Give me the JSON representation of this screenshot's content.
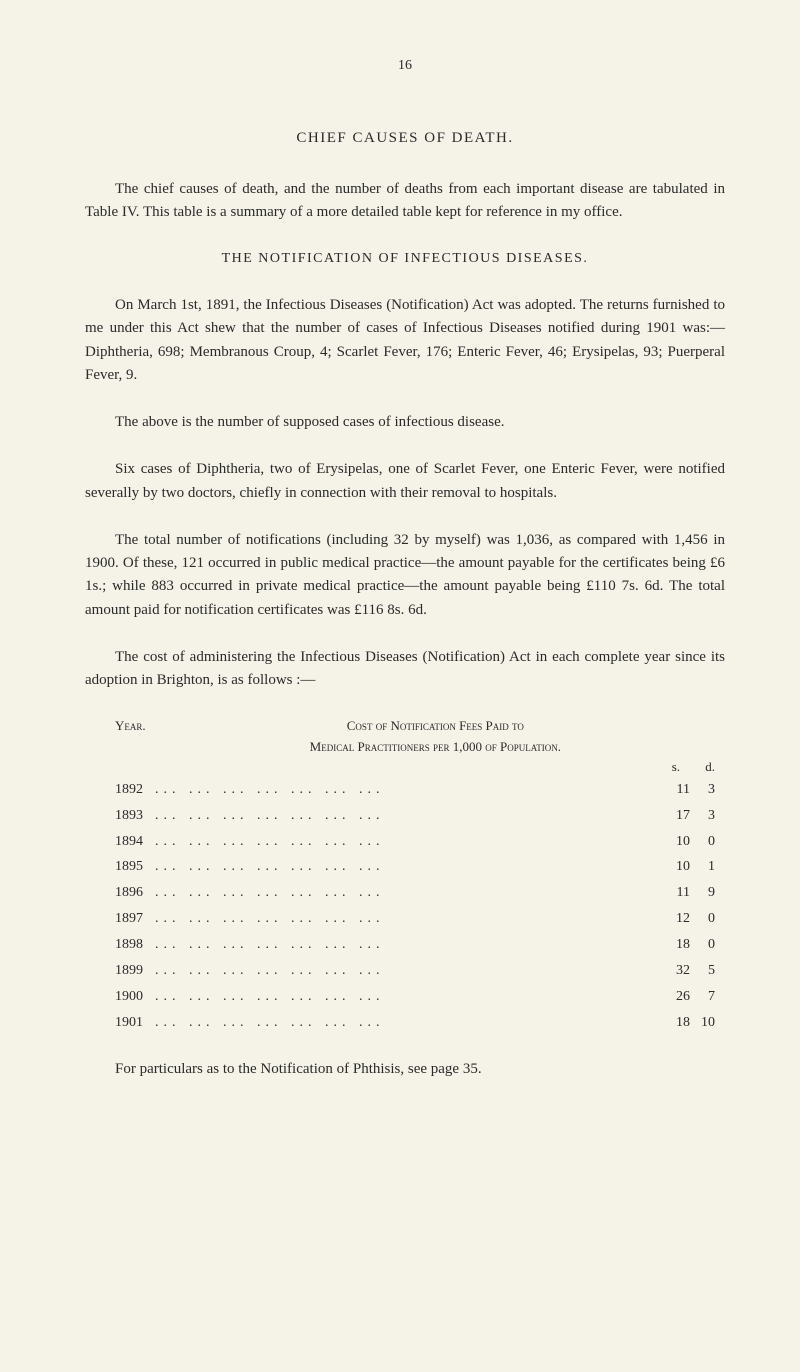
{
  "page_number": "16",
  "section1": {
    "heading": "CHIEF CAUSES OF DEATH.",
    "para1": "The chief causes of death, and the number of deaths from each important disease are tabulated in Table IV. This table is a summary of a more detailed table kept for reference in my office."
  },
  "section2": {
    "heading": "THE NOTIFICATION OF INFECTIOUS DISEASES.",
    "para1": "On March 1st, 1891, the Infectious Diseases (Notification) Act was adopted. The returns furnished to me under this Act shew that the number of cases of Infectious Diseases notified during 1901 was:—Diphtheria, 698; Membranous Croup, 4; Scarlet Fever, 176; Enteric Fever, 46; Erysipelas, 93; Puerperal Fever, 9.",
    "para2": "The above is the number of supposed cases of infectious disease.",
    "para3": "Six cases of Diphtheria, two of Erysipelas, one of Scarlet Fever, one Enteric Fever, were notified severally by two doctors, chiefly in connection with their removal to hospitals.",
    "para4": "The total number of notifications (including 32 by myself) was 1,036, as compared with 1,456 in 1900. Of these, 121 occurred in public medical practice—the amount payable for the certificates being £6 1s.; while 883 occurred in private medical practice—the amount payable being £110 7s. 6d. The total amount paid for notification certificates was £116 8s. 6d.",
    "para5": "The cost of administering the Infectious Diseases (Notification) Act in each complete year since its adoption in Brighton, is as follows :—"
  },
  "table": {
    "year_label": "Year.",
    "header_line1": "Cost of Notification Fees Paid to",
    "header_line2": "Medical Practitioners per 1,000 of Population.",
    "col_s": "s.",
    "col_d": "d.",
    "rows": [
      {
        "year": "1892",
        "s": "11",
        "d": "3"
      },
      {
        "year": "1893",
        "s": "17",
        "d": "3"
      },
      {
        "year": "1894",
        "s": "10",
        "d": "0"
      },
      {
        "year": "1895",
        "s": "10",
        "d": "1"
      },
      {
        "year": "1896",
        "s": "11",
        "d": "9"
      },
      {
        "year": "1897",
        "s": "12",
        "d": "0"
      },
      {
        "year": "1898",
        "s": "18",
        "d": "0"
      },
      {
        "year": "1899",
        "s": "32",
        "d": "5"
      },
      {
        "year": "1900",
        "s": "26",
        "d": "7"
      },
      {
        "year": "1901",
        "s": "18",
        "d": "10"
      }
    ]
  },
  "footer": "For particulars as to the Notification of Phthisis, see page 35.",
  "colors": {
    "background": "#f5f2e8",
    "text": "#2a2a2a"
  }
}
